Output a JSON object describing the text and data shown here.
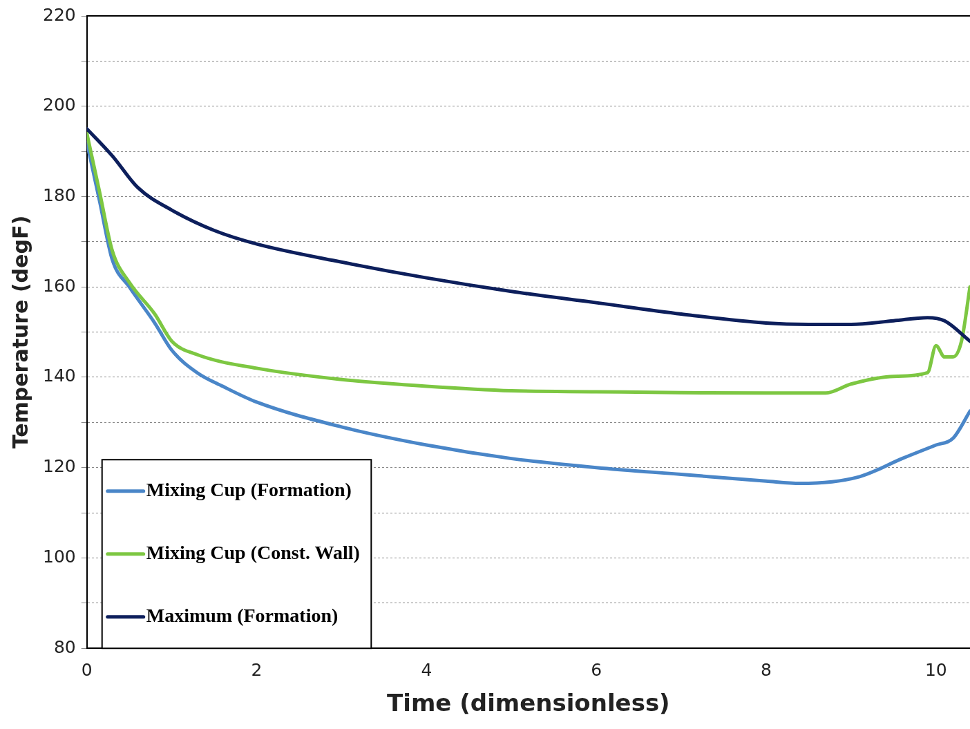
{
  "chart_data": {
    "type": "line",
    "xlabel": "Time (dimensionless)",
    "ylabel": "Temperature (degF)",
    "xlim": [
      0,
      10.4
    ],
    "xticks": [
      0,
      2,
      4,
      6,
      8,
      10
    ],
    "ylim": [
      80,
      220
    ],
    "yticks": [
      80,
      {
        "value": 90,
        "label": null
      },
      100,
      {
        "value": 110,
        "label": null
      },
      120,
      {
        "value": 130,
        "label": null
      },
      140,
      {
        "value": 150,
        "label": null
      },
      160,
      {
        "value": 170,
        "label": null
      },
      180,
      {
        "value": 190,
        "label": null
      },
      200,
      {
        "value": 210,
        "label": null
      },
      220
    ],
    "grid": "y",
    "legend": "bottom left",
    "marker": "none",
    "line_style": "solid",
    "series": [
      {
        "name": "Mixing Cup (Formation)",
        "color": "#4a86c8",
        "x": [
          0,
          0.15,
          0.3,
          0.5,
          0.8,
          1,
          1.3,
          1.6,
          2,
          3,
          4,
          5,
          6,
          7,
          8,
          8.4,
          9.1,
          9.6,
          10,
          10.2,
          10.4
        ],
        "values": [
          192,
          179,
          166,
          160,
          152,
          146,
          141,
          138,
          134.5,
          129,
          125,
          122,
          120,
          118.5,
          117,
          116.5,
          118,
          122,
          125,
          126.5,
          132.5
        ]
      },
      {
        "name": "Mixing Cup (Const. Wall)",
        "color": "#7dc742",
        "x": [
          0,
          0.15,
          0.3,
          0.5,
          0.8,
          1,
          1.3,
          2,
          3,
          4,
          5,
          6,
          7,
          8,
          8.7,
          9,
          9.5,
          9.9,
          10,
          10.1,
          10.2,
          10.3,
          10.4
        ],
        "values": [
          194,
          181,
          168,
          161,
          154,
          148,
          145,
          142,
          139.5,
          138,
          137,
          136.8,
          136.6,
          136.5,
          136.5,
          138.5,
          140.2,
          141,
          147,
          144.5,
          144.5,
          148,
          160
        ]
      },
      {
        "name": "Maximum (Formation)",
        "color": "#0d1f5c",
        "x": [
          0,
          0.3,
          0.6,
          1,
          1.5,
          2,
          3,
          4,
          5,
          6,
          7,
          8,
          8.5,
          9,
          9.5,
          9.9,
          10.1,
          10.4
        ],
        "values": [
          195,
          189,
          182,
          177,
          172.5,
          169.5,
          165.5,
          162,
          159,
          156.5,
          154,
          152,
          151.7,
          151.7,
          152.5,
          153.2,
          152.5,
          148
        ]
      }
    ]
  }
}
